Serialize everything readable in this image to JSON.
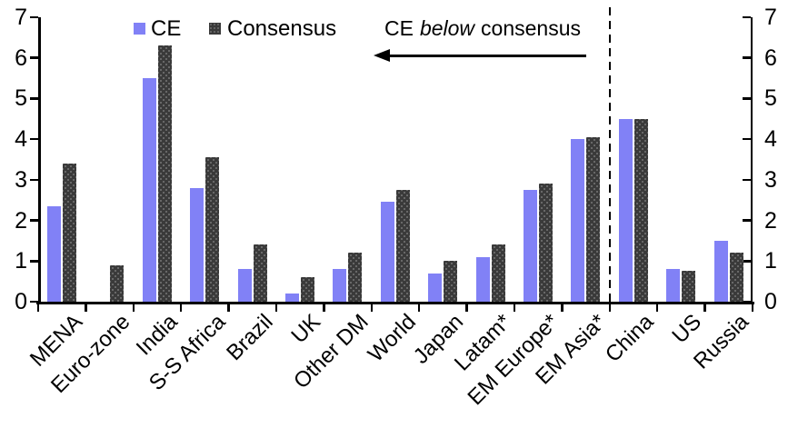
{
  "chart_data": {
    "type": "bar",
    "title": "",
    "xlabel": "",
    "ylabel": "",
    "categories": [
      "MENA",
      "Euro-zone",
      "India",
      "S-S Africa",
      "Brazil",
      "UK",
      "Other DM",
      "World",
      "Japan",
      "Latam*",
      "EM Europe*",
      "EM Asia*",
      "China",
      "US",
      "Russia"
    ],
    "series": [
      {
        "name": "CE",
        "color": "#8181f6",
        "values": [
          2.35,
          0,
          5.5,
          2.8,
          0.8,
          0.2,
          0.8,
          2.45,
          0.7,
          1.1,
          2.75,
          4.0,
          4.5,
          0.8,
          1.5
        ]
      },
      {
        "name": "Consensus",
        "color": "#3a3a3a",
        "values": [
          3.4,
          0.9,
          6.3,
          3.55,
          1.4,
          0.6,
          1.2,
          2.75,
          1.0,
          1.4,
          2.9,
          4.05,
          4.5,
          0.75,
          1.2
        ]
      }
    ],
    "ylim": [
      0,
      7
    ],
    "yticks": [
      0,
      1,
      2,
      3,
      4,
      5,
      6,
      7
    ],
    "dual_y_axis": true,
    "grid": false,
    "legend_position": "top",
    "divider_boundary_index": 12,
    "annotation": {
      "word1": "CE",
      "word2": "below",
      "word3": "consensus",
      "arrow_direction": "left"
    }
  },
  "legend": {
    "items": [
      {
        "label": "CE",
        "color": "#8181f6"
      },
      {
        "label": "Consensus",
        "color": "#3a3a3a"
      }
    ]
  }
}
